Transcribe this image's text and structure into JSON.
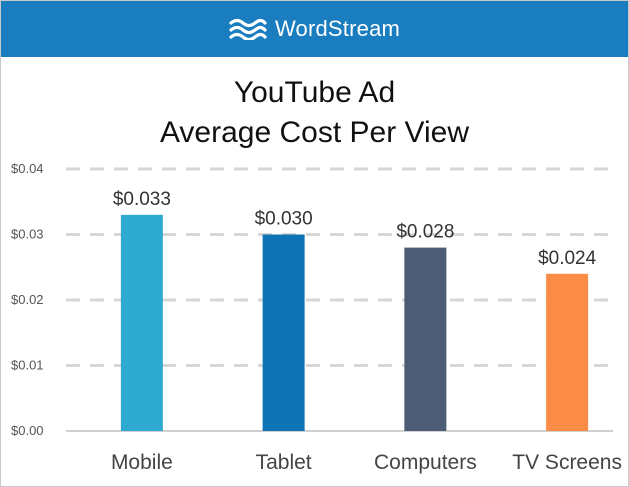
{
  "brand": {
    "name": "WordStream",
    "logo_icon": "wave-logo-icon",
    "color": "#1a7dc0"
  },
  "chart_data": {
    "type": "bar",
    "title_lines": [
      "YouTube Ad",
      "Average Cost Per View"
    ],
    "categories": [
      "Mobile",
      "Tablet",
      "Computers",
      "TV Screens"
    ],
    "values": [
      0.033,
      0.03,
      0.028,
      0.024
    ],
    "data_labels": [
      "$0.033",
      "$0.030",
      "$0.028",
      "$0.024"
    ],
    "colors": [
      "#2eaad1",
      "#0e74b6",
      "#4b5c74",
      "#fb8c46"
    ],
    "yticks": [
      0,
      0.01,
      0.02,
      0.03,
      0.04
    ],
    "ytick_labels": [
      "$0.00",
      "$0.01",
      "$0.02",
      "$0.03",
      "$0.04"
    ],
    "ylim": [
      0,
      0.04
    ],
    "grid": "dashed horizontal",
    "legend": "none"
  }
}
